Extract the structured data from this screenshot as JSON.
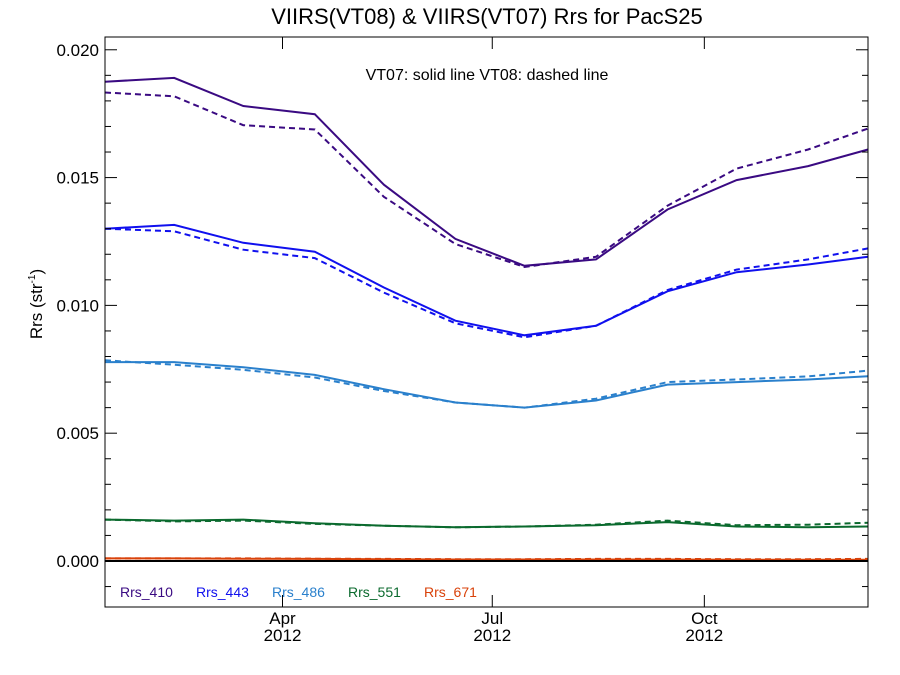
{
  "chart_data": {
    "type": "line",
    "title": "VIIRS(VT08) & VIIRS(VT07)  Rrs for PacS25",
    "ylabel_main": "Rrs (str",
    "ylabel_sup": "-1",
    "ylabel_close": ")",
    "annotation": "VT07: solid line   VT08: dashed line",
    "ylim": [
      -0.0018,
      0.0205
    ],
    "xlim": [
      "2012-01-15",
      "2012-12-11"
    ],
    "yticks": [
      0.0,
      0.005,
      0.01,
      0.015,
      0.02
    ],
    "ytick_labels": [
      "0.000",
      "0.005",
      "0.010",
      "0.015",
      "0.020"
    ],
    "xticks": [
      {
        "date": "2012-04-01",
        "month": "Apr",
        "year": "2012"
      },
      {
        "date": "2012-07-01",
        "month": "Jul",
        "year": "2012"
      },
      {
        "date": "2012-10-01",
        "month": "Oct",
        "year": "2012"
      }
    ],
    "zero_line": 0.0,
    "x": [
      "2012-01-15",
      "2012-02-14",
      "2012-03-15",
      "2012-04-15",
      "2012-05-15",
      "2012-06-15",
      "2012-07-15",
      "2012-08-15",
      "2012-09-15",
      "2012-10-15",
      "2012-11-15",
      "2012-12-11"
    ],
    "series": [
      {
        "name": "Rrs_410",
        "color": "#3a0a82",
        "vt07": [
          0.01875,
          0.0189,
          0.0178,
          0.01748,
          0.01472,
          0.0126,
          0.01155,
          0.0118,
          0.01375,
          0.0149,
          0.01545,
          0.0161
        ],
        "vt08": [
          0.01833,
          0.01818,
          0.01705,
          0.01688,
          0.01425,
          0.0124,
          0.0115,
          0.0119,
          0.0139,
          0.01535,
          0.0161,
          0.01692
        ]
      },
      {
        "name": "Rrs_443",
        "color": "#1010ee",
        "vt07": [
          0.013,
          0.01315,
          0.01245,
          0.0121,
          0.0107,
          0.0094,
          0.00883,
          0.0092,
          0.01055,
          0.0113,
          0.0116,
          0.0119
        ],
        "vt08": [
          0.013,
          0.0129,
          0.01218,
          0.01185,
          0.0105,
          0.0093,
          0.00875,
          0.0092,
          0.0106,
          0.0114,
          0.0118,
          0.01223
        ]
      },
      {
        "name": "Rrs_486",
        "color": "#2a80cc",
        "vt07": [
          0.00778,
          0.00778,
          0.00758,
          0.00728,
          0.00672,
          0.0062,
          0.006,
          0.00628,
          0.0069,
          0.007,
          0.0071,
          0.00723
        ],
        "vt08": [
          0.00785,
          0.00768,
          0.00748,
          0.00718,
          0.00665,
          0.0062,
          0.006,
          0.00635,
          0.007,
          0.0071,
          0.00722,
          0.00745
        ]
      },
      {
        "name": "Rrs_551",
        "color": "#0b6a2e",
        "vt07": [
          0.00162,
          0.00158,
          0.00162,
          0.00148,
          0.00138,
          0.00132,
          0.00135,
          0.0014,
          0.00152,
          0.00135,
          0.00132,
          0.00135
        ],
        "vt08": [
          0.00162,
          0.00155,
          0.00158,
          0.00145,
          0.00138,
          0.00132,
          0.00135,
          0.00142,
          0.00158,
          0.0014,
          0.00142,
          0.0015
        ]
      },
      {
        "name": "Rrs_671",
        "color": "#d9420a",
        "vt07": [
          0.0001,
          0.0001,
          9e-05,
          8e-05,
          7e-05,
          6e-05,
          6e-05,
          6e-05,
          6e-05,
          5e-05,
          5e-05,
          5e-05
        ],
        "vt08": [
          0.0001,
          0.0001,
          0.0001,
          9e-05,
          8e-05,
          7e-05,
          7e-05,
          8e-05,
          8e-05,
          7e-05,
          7e-05,
          8e-05
        ]
      }
    ]
  }
}
